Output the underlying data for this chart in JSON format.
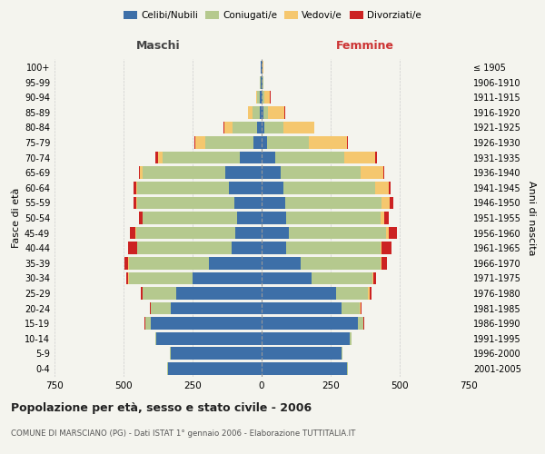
{
  "age_groups": [
    "0-4",
    "5-9",
    "10-14",
    "15-19",
    "20-24",
    "25-29",
    "30-34",
    "35-39",
    "40-44",
    "45-49",
    "50-54",
    "55-59",
    "60-64",
    "65-69",
    "70-74",
    "75-79",
    "80-84",
    "85-89",
    "90-94",
    "95-99",
    "100+"
  ],
  "birth_years": [
    "2001-2005",
    "1996-2000",
    "1991-1995",
    "1986-1990",
    "1981-1985",
    "1976-1980",
    "1971-1975",
    "1966-1970",
    "1961-1965",
    "1956-1960",
    "1951-1955",
    "1946-1950",
    "1941-1945",
    "1936-1940",
    "1931-1935",
    "1926-1930",
    "1921-1925",
    "1916-1920",
    "1911-1915",
    "1906-1910",
    "≤ 1905"
  ],
  "maschi": {
    "celibi": [
      340,
      330,
      380,
      400,
      330,
      310,
      250,
      190,
      110,
      95,
      90,
      100,
      120,
      130,
      80,
      30,
      15,
      8,
      5,
      2,
      2
    ],
    "coniugati": [
      2,
      2,
      5,
      20,
      70,
      120,
      230,
      290,
      340,
      360,
      340,
      350,
      330,
      300,
      280,
      175,
      90,
      25,
      10,
      3,
      2
    ],
    "vedovi": [
      0,
      0,
      0,
      2,
      2,
      2,
      2,
      2,
      2,
      2,
      2,
      3,
      5,
      10,
      15,
      35,
      30,
      15,
      5,
      0,
      0
    ],
    "divorziati": [
      0,
      0,
      0,
      2,
      3,
      5,
      8,
      15,
      30,
      20,
      12,
      10,
      8,
      5,
      10,
      5,
      2,
      0,
      0,
      0,
      0
    ]
  },
  "femmine": {
    "nubili": [
      310,
      290,
      320,
      350,
      290,
      270,
      180,
      140,
      90,
      100,
      90,
      85,
      80,
      70,
      50,
      20,
      10,
      5,
      3,
      2,
      2
    ],
    "coniugate": [
      2,
      2,
      5,
      18,
      65,
      115,
      220,
      290,
      340,
      350,
      340,
      350,
      330,
      290,
      250,
      150,
      70,
      18,
      8,
      3,
      2
    ],
    "vedove": [
      0,
      0,
      0,
      2,
      3,
      5,
      5,
      5,
      5,
      10,
      15,
      30,
      50,
      80,
      110,
      140,
      110,
      60,
      20,
      3,
      1
    ],
    "divorziate": [
      0,
      0,
      0,
      2,
      3,
      8,
      10,
      20,
      35,
      30,
      15,
      12,
      8,
      5,
      8,
      3,
      2,
      2,
      1,
      0,
      0
    ]
  },
  "colors": {
    "celibi": "#3d6fa8",
    "coniugati": "#b5c98e",
    "vedovi": "#f5c76e",
    "divorziati": "#cc2222"
  },
  "xlim": 750,
  "title": "Popolazione per età, sesso e stato civile - 2006",
  "subtitle": "COMUNE DI MARSCIANO (PG) - Dati ISTAT 1° gennaio 2006 - Elaborazione TUTTITALIA.IT",
  "ylabel_left": "Fasce di età",
  "ylabel_right": "Anni di nascita",
  "xlabel_maschi": "Maschi",
  "xlabel_femmine": "Femmine",
  "bg_color": "#f4f4ee",
  "grid_color": "#cccccc",
  "legend_labels": [
    "Celibi/Nubili",
    "Coniugati/e",
    "Vedovi/e",
    "Divorziati/e"
  ],
  "xticks": [
    750,
    500,
    250,
    0,
    250,
    500,
    750
  ]
}
